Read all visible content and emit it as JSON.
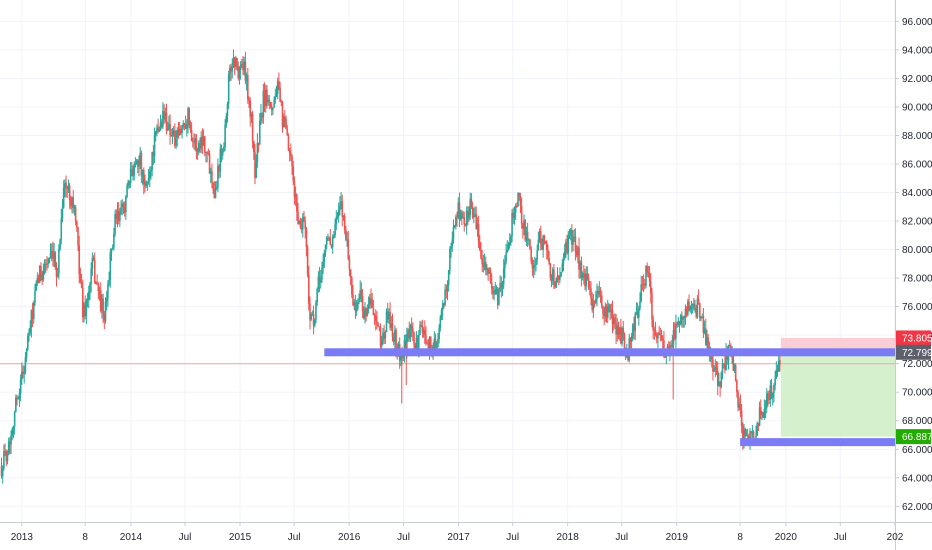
{
  "chart_data": {
    "type": "candlestick",
    "title": "",
    "xlabel": "",
    "ylabel": "",
    "ylim": [
      60.9,
      97.5
    ],
    "x_range": [
      "2012-10-20",
      "2020-12-31"
    ],
    "grid": true,
    "y_axis_position": "right",
    "y_ticks": [
      "62.000",
      "64.000",
      "66.000",
      "68.000",
      "70.000",
      "72.000",
      "74.000",
      "76.000",
      "78.000",
      "80.000",
      "82.000",
      "84.000",
      "86.000",
      "88.000",
      "90.000",
      "92.000",
      "94.000",
      "96.000"
    ],
    "x_ticks": [
      {
        "label": "2013",
        "date": "2013-01-01"
      },
      {
        "label": "8",
        "date": "2013-08-01"
      },
      {
        "label": "2014",
        "date": "2014-01-01"
      },
      {
        "label": "Jul",
        "date": "2014-07-01"
      },
      {
        "label": "2015",
        "date": "2015-01-01"
      },
      {
        "label": "Jul",
        "date": "2015-07-01"
      },
      {
        "label": "2016",
        "date": "2016-01-01"
      },
      {
        "label": "Jul",
        "date": "2016-07-01"
      },
      {
        "label": "2017",
        "date": "2017-01-01"
      },
      {
        "label": "Jul",
        "date": "2017-07-01"
      },
      {
        "label": "2018",
        "date": "2018-01-01"
      },
      {
        "label": "Jul",
        "date": "2018-07-01"
      },
      {
        "label": "2019",
        "date": "2019-01-01"
      },
      {
        "label": "8",
        "date": "2019-08-01"
      },
      {
        "label": "2020",
        "date": "2020-01-01"
      },
      {
        "label": "Jul",
        "date": "2020-07-01"
      },
      {
        "label": "202",
        "date": "2020-12-31"
      }
    ],
    "price_path": [
      [
        "2012-10-25",
        64.8
      ],
      [
        "2012-11-20",
        66.5
      ],
      [
        "2012-12-15",
        69.5
      ],
      [
        "2013-01-10",
        72.0
      ],
      [
        "2013-02-05",
        75.5
      ],
      [
        "2013-02-25",
        78.0
      ],
      [
        "2013-03-20",
        79.0
      ],
      [
        "2013-04-15",
        79.3
      ],
      [
        "2013-05-01",
        78.5
      ],
      [
        "2013-05-20",
        84.5
      ],
      [
        "2013-06-10",
        84.0
      ],
      [
        "2013-06-25",
        83.0
      ],
      [
        "2013-07-10",
        79.5
      ],
      [
        "2013-07-25",
        75.5
      ],
      [
        "2013-08-10",
        76.5
      ],
      [
        "2013-08-25",
        79.0
      ],
      [
        "2013-09-15",
        77.0
      ],
      [
        "2013-10-05",
        75.0
      ],
      [
        "2013-10-20",
        78.5
      ],
      [
        "2013-11-10",
        82.0
      ],
      [
        "2013-12-01",
        82.5
      ],
      [
        "2013-12-20",
        84.0
      ],
      [
        "2014-01-10",
        86.0
      ],
      [
        "2014-01-30",
        86.5
      ],
      [
        "2014-02-15",
        84.0
      ],
      [
        "2014-03-05",
        85.5
      ],
      [
        "2014-03-20",
        87.5
      ],
      [
        "2014-04-05",
        88.5
      ],
      [
        "2014-04-20",
        89.5
      ],
      [
        "2014-05-10",
        88.5
      ],
      [
        "2014-06-01",
        87.5
      ],
      [
        "2014-06-20",
        88.5
      ],
      [
        "2014-07-10",
        89.5
      ],
      [
        "2014-07-25",
        88.0
      ],
      [
        "2014-08-10",
        87.0
      ],
      [
        "2014-08-30",
        88.0
      ],
      [
        "2014-09-20",
        86.0
      ],
      [
        "2014-10-10",
        84.0
      ],
      [
        "2014-10-25",
        86.5
      ],
      [
        "2014-11-10",
        88.0
      ],
      [
        "2014-11-25",
        92.0
      ],
      [
        "2014-12-10",
        93.5
      ],
      [
        "2014-12-25",
        92.5
      ],
      [
        "2015-01-10",
        93.0
      ],
      [
        "2015-01-25",
        91.5
      ],
      [
        "2015-02-10",
        88.5
      ],
      [
        "2015-02-20",
        85.5
      ],
      [
        "2015-03-05",
        88.0
      ],
      [
        "2015-03-20",
        90.5
      ],
      [
        "2015-04-05",
        91.0
      ],
      [
        "2015-04-20",
        90.0
      ],
      [
        "2015-05-05",
        91.5
      ],
      [
        "2015-05-20",
        89.5
      ],
      [
        "2015-06-05",
        88.0
      ],
      [
        "2015-06-20",
        86.0
      ],
      [
        "2015-07-05",
        83.5
      ],
      [
        "2015-07-20",
        81.5
      ],
      [
        "2015-08-05",
        82.5
      ],
      [
        "2015-08-20",
        76.0
      ],
      [
        "2015-09-05",
        74.5
      ],
      [
        "2015-09-20",
        77.5
      ],
      [
        "2015-10-05",
        79.0
      ],
      [
        "2015-10-20",
        81.0
      ],
      [
        "2015-11-05",
        80.5
      ],
      [
        "2015-11-20",
        82.0
      ],
      [
        "2015-12-05",
        83.0
      ],
      [
        "2015-12-20",
        81.5
      ],
      [
        "2016-01-05",
        78.0
      ],
      [
        "2016-01-20",
        75.5
      ],
      [
        "2016-02-05",
        77.0
      ],
      [
        "2016-02-20",
        75.5
      ],
      [
        "2016-03-10",
        76.5
      ],
      [
        "2016-04-01",
        74.5
      ],
      [
        "2016-04-20",
        73.5
      ],
      [
        "2016-05-10",
        75.5
      ],
      [
        "2016-05-30",
        74.0
      ],
      [
        "2016-06-20",
        72.5
      ],
      [
        "2016-07-05",
        73.0
      ],
      [
        "2016-07-25",
        74.5
      ],
      [
        "2016-08-10",
        73.0
      ],
      [
        "2016-08-30",
        74.5
      ],
      [
        "2016-09-20",
        73.5
      ],
      [
        "2016-10-10",
        73.0
      ],
      [
        "2016-10-30",
        74.5
      ],
      [
        "2016-11-15",
        76.5
      ],
      [
        "2016-11-30",
        79.0
      ],
      [
        "2016-12-15",
        81.5
      ],
      [
        "2017-01-01",
        83.0
      ],
      [
        "2017-01-20",
        81.5
      ],
      [
        "2017-02-10",
        83.5
      ],
      [
        "2017-02-25",
        82.0
      ],
      [
        "2017-03-15",
        80.0
      ],
      [
        "2017-04-01",
        79.0
      ],
      [
        "2017-04-20",
        77.5
      ],
      [
        "2017-05-10",
        76.5
      ],
      [
        "2017-05-30",
        78.0
      ],
      [
        "2017-06-15",
        80.0
      ],
      [
        "2017-07-01",
        82.5
      ],
      [
        "2017-07-20",
        83.5
      ],
      [
        "2017-08-10",
        81.5
      ],
      [
        "2017-08-30",
        79.5
      ],
      [
        "2017-09-15",
        79.0
      ],
      [
        "2017-10-01",
        81.0
      ],
      [
        "2017-10-20",
        80.0
      ],
      [
        "2017-11-05",
        78.5
      ],
      [
        "2017-11-25",
        77.5
      ],
      [
        "2017-12-15",
        79.0
      ],
      [
        "2018-01-01",
        80.5
      ],
      [
        "2018-01-20",
        81.0
      ],
      [
        "2018-02-05",
        79.5
      ],
      [
        "2018-02-20",
        78.0
      ],
      [
        "2018-03-10",
        77.5
      ],
      [
        "2018-03-30",
        76.0
      ],
      [
        "2018-04-15",
        77.0
      ],
      [
        "2018-05-01",
        75.5
      ],
      [
        "2018-05-20",
        75.5
      ],
      [
        "2018-06-10",
        74.5
      ],
      [
        "2018-06-30",
        74.0
      ],
      [
        "2018-07-15",
        72.5
      ],
      [
        "2018-08-01",
        73.5
      ],
      [
        "2018-08-20",
        75.5
      ],
      [
        "2018-09-05",
        77.5
      ],
      [
        "2018-09-25",
        78.5
      ],
      [
        "2018-10-10",
        75.5
      ],
      [
        "2018-10-25",
        73.5
      ],
      [
        "2018-11-10",
        74.0
      ],
      [
        "2018-11-25",
        72.5
      ],
      [
        "2018-12-10",
        73.5
      ],
      [
        "2018-12-30",
        74.5
      ],
      [
        "2019-01-15",
        75.5
      ],
      [
        "2019-02-01",
        76.0
      ],
      [
        "2019-02-20",
        75.5
      ],
      [
        "2019-03-10",
        76.0
      ],
      [
        "2019-03-30",
        74.5
      ],
      [
        "2019-04-15",
        73.0
      ],
      [
        "2019-05-01",
        72.0
      ],
      [
        "2019-05-20",
        70.5
      ],
      [
        "2019-06-05",
        71.5
      ],
      [
        "2019-06-20",
        73.0
      ],
      [
        "2019-07-05",
        72.5
      ],
      [
        "2019-07-20",
        70.5
      ],
      [
        "2019-08-05",
        67.5
      ],
      [
        "2019-08-20",
        66.5
      ],
      [
        "2019-09-05",
        67.5
      ],
      [
        "2019-09-20",
        67.0
      ],
      [
        "2019-10-05",
        68.5
      ],
      [
        "2019-10-20",
        69.0
      ],
      [
        "2019-11-05",
        69.5
      ],
      [
        "2019-11-20",
        70.5
      ],
      [
        "2019-12-05",
        71.5
      ],
      [
        "2019-12-15",
        72.4
      ]
    ],
    "outlier_wicks": [
      {
        "date": "2016-06-25",
        "low": 69.2
      },
      {
        "date": "2016-07-10",
        "low": 70.5
      },
      {
        "date": "2018-12-20",
        "low": 69.5
      }
    ],
    "horizontal_lines": [
      {
        "value": 72.0,
        "color": "#f7a1a8"
      }
    ],
    "zones": [
      {
        "from": "2015-10-10",
        "to": "2020-12-31",
        "value": 72.8,
        "color": "#7b7bf5"
      },
      {
        "from": "2019-08-01",
        "to": "2020-12-31",
        "value": 66.5,
        "color": "#7b7bf5"
      }
    ],
    "position": {
      "from": "2019-12-15",
      "to": "2020-12-31",
      "entry": 72.799,
      "stop": 73.805,
      "target": 66.887,
      "stop_fill": "#f8c6cc",
      "target_fill": "#cfeec8"
    },
    "price_tags": [
      {
        "label": "73.805",
        "value": 73.805,
        "color": "#f23645"
      },
      {
        "label": "72.799",
        "value": 72.799,
        "color": "#5d606b"
      },
      {
        "label": "66.887",
        "value": 66.887,
        "color": "#22ab00"
      }
    ],
    "colors": {
      "up": "#26a69a",
      "down": "#ef5350",
      "grid": "#f0f3fa",
      "axis_text": "#1e222d"
    }
  }
}
